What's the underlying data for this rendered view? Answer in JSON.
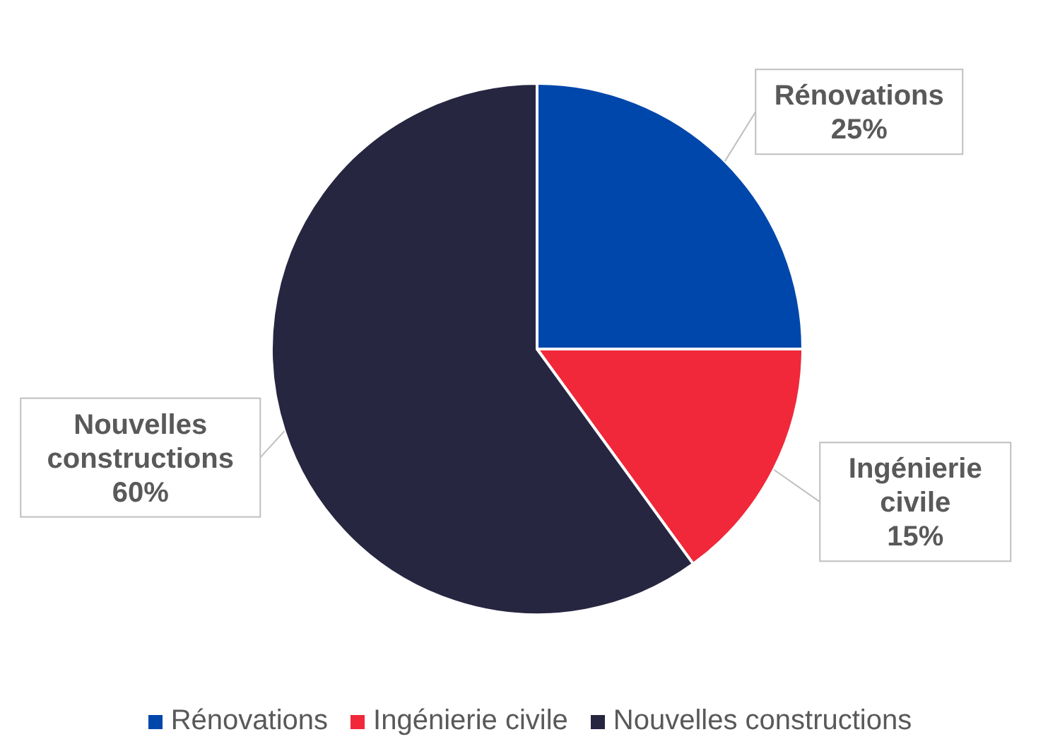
{
  "chart_data": {
    "type": "pie",
    "categories": [
      "Rénovations",
      "Ingénierie civile",
      "Nouvelles constructions"
    ],
    "values": [
      25,
      15,
      60
    ],
    "colors": [
      "#0047ab",
      "#f0283a",
      "#262641"
    ],
    "value_labels": [
      "25%",
      "15%",
      "60%"
    ],
    "legend": "bottom"
  }
}
